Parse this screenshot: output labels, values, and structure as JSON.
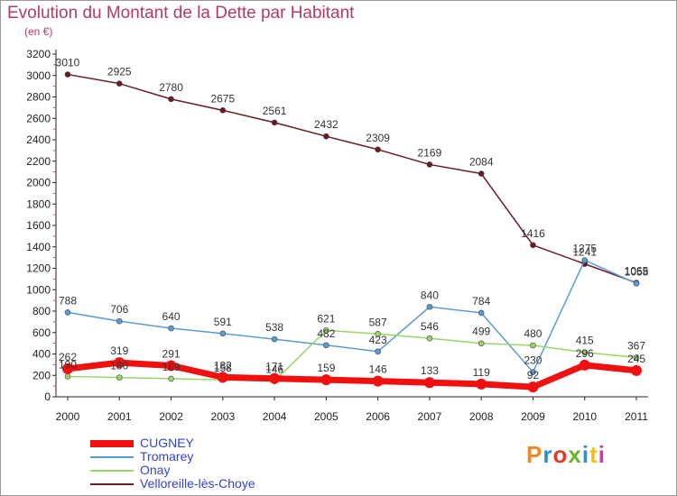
{
  "header": {
    "title": "Evolution du Montant de la Dette par Habitant",
    "subtitle": "(en €)"
  },
  "logo": {
    "text": "Proxiti",
    "colors": [
      "#f08a1c",
      "#2a8fd6",
      "#e23a2a",
      "#6ab42d",
      "#2a8fd6",
      "#f0c020",
      "#d23aa0"
    ]
  },
  "chart_data": {
    "type": "line",
    "x": [
      "2000",
      "2001",
      "2002",
      "2003",
      "2004",
      "2005",
      "2006",
      "2007",
      "2008",
      "2009",
      "2010",
      "2011"
    ],
    "ylim": [
      0,
      3200
    ],
    "yticks": [
      0,
      200,
      400,
      600,
      800,
      1000,
      1200,
      1400,
      1600,
      1800,
      2000,
      2200,
      2400,
      2600,
      2800,
      3000,
      3200
    ],
    "grid": false,
    "legend": "bottom-left",
    "series": [
      {
        "name": "Velloreille-lès-Choye",
        "color": "#6b1a22",
        "values": [
          3010,
          2925,
          2780,
          2675,
          2561,
          2432,
          2309,
          2169,
          2084,
          1416,
          1241,
          1065
        ]
      },
      {
        "name": "Tromarey",
        "color": "#5b9bd5",
        "values": [
          788,
          706,
          640,
          591,
          538,
          482,
          423,
          840,
          784,
          230,
          1275,
          1058
        ]
      },
      {
        "name": "Onay",
        "color": "#9bd46a",
        "values": [
          190,
          180,
          169,
          158,
          146,
          621,
          587,
          546,
          499,
          480,
          415,
          367
        ]
      },
      {
        "name": "CUGNEY",
        "color": "#f01010",
        "values": [
          262,
          319,
          291,
          182,
          171,
          159,
          146,
          133,
          119,
          92,
          296,
          245
        ]
      }
    ],
    "labels": [
      [
        3010,
        2925,
        2780,
        2675,
        2561,
        2432,
        2309,
        2169,
        2084,
        1416,
        1241,
        1065
      ],
      [
        788,
        706,
        640,
        591,
        538,
        482,
        423,
        840,
        784,
        230,
        1275,
        1058
      ],
      [
        190,
        180,
        169,
        158,
        146,
        621,
        587,
        546,
        499,
        480,
        415,
        367
      ],
      [
        262,
        319,
        291,
        182,
        171,
        159,
        146,
        133,
        119,
        92,
        296,
        245
      ]
    ]
  }
}
